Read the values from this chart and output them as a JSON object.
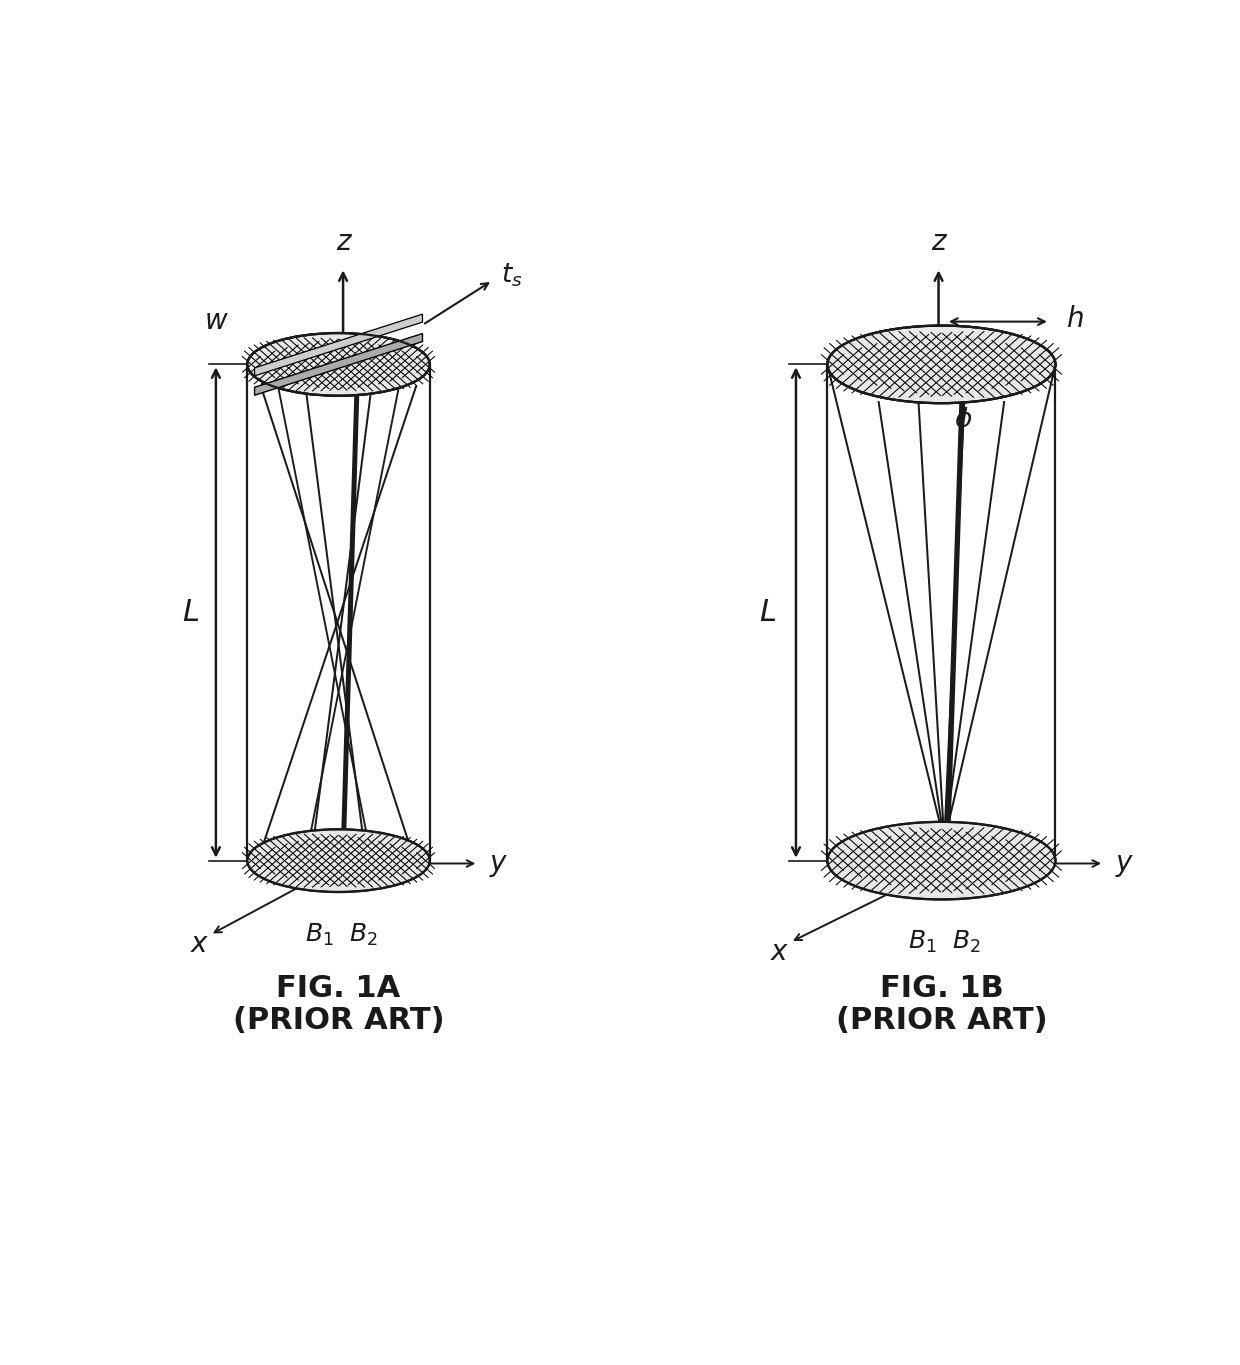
{
  "fig1a_title": "FIG. 1A",
  "fig1a_subtitle": "(PRIOR ART)",
  "fig1b_title": "FIG. 1B",
  "fig1b_subtitle": "(PRIOR ART)",
  "bg_color": "#ffffff",
  "line_color": "#1a1a1a",
  "title_fontsize": 22,
  "label_fontsize": 19
}
